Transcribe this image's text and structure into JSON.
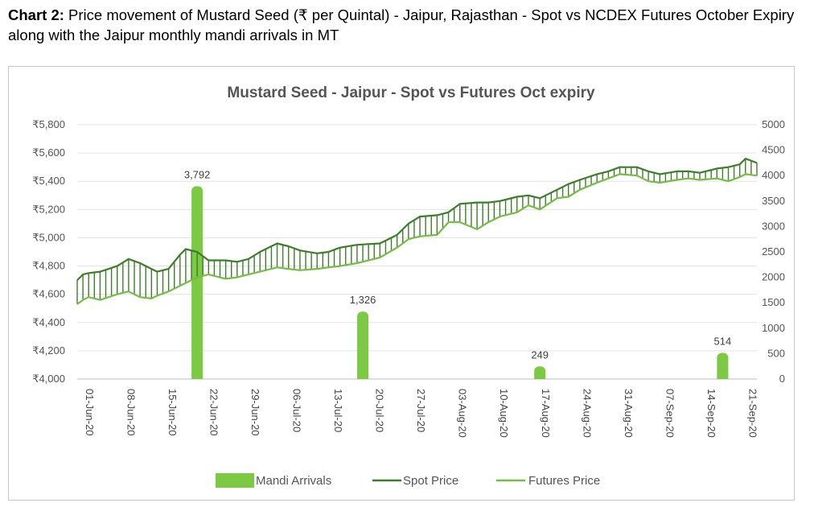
{
  "caption": {
    "bold": "Chart 2:",
    "text": " Price movement of Mustard Seed (₹ per Quintal) - Jaipur, Rajasthan - Spot vs NCDEX Futures October Expiry along with the Jaipur monthly mandi arrivals in MT"
  },
  "chart_data": {
    "type": "line",
    "title": "Mustard Seed - Jaipur - Spot vs Futures Oct expiry",
    "xlabel": "",
    "ylabel": "",
    "y_left": {
      "min": 4000,
      "max": 5800,
      "ticks": [
        4000,
        4200,
        4400,
        4600,
        4800,
        5000,
        5200,
        5400,
        5600,
        5800
      ],
      "tick_labels": [
        "₹4,000",
        "₹4,200",
        "₹4,400",
        "₹4,600",
        "₹4,800",
        "₹5,000",
        "₹5,200",
        "₹5,400",
        "₹5,600",
        "₹5,800"
      ]
    },
    "y_right": {
      "min": 0,
      "max": 5000,
      "ticks": [
        0,
        500,
        1000,
        1500,
        2000,
        2500,
        3000,
        3500,
        4000,
        4500,
        5000
      ],
      "tick_labels": [
        "0",
        "500",
        "1000",
        "1500",
        "2000",
        "2500",
        "3000",
        "3500",
        "4000",
        "4500",
        "5000"
      ]
    },
    "x_range": [
      "2020-06-01",
      "2020-09-28"
    ],
    "x_ticks": [
      "01-Jun-20",
      "08-Jun-20",
      "15-Jun-20",
      "22-Jun-20",
      "29-Jun-20",
      "06-Jul-20",
      "13-Jul-20",
      "20-Jul-20",
      "27-Jul-20",
      "03-Aug-20",
      "10-Aug-20",
      "17-Aug-20",
      "24-Aug-20",
      "31-Aug-20",
      "07-Sep-20",
      "14-Sep-20",
      "21-Sep-20"
    ],
    "grid": "horizontal",
    "legend_position": "bottom",
    "series": [
      {
        "name": "Spot Price",
        "color": "#3e7d2c",
        "points": [
          [
            "2020-06-01",
            4700
          ],
          [
            "2020-06-02",
            4740
          ],
          [
            "2020-06-03",
            4750
          ],
          [
            "2020-06-05",
            4760
          ],
          [
            "2020-06-08",
            4800
          ],
          [
            "2020-06-10",
            4850
          ],
          [
            "2020-06-12",
            4820
          ],
          [
            "2020-06-14",
            4780
          ],
          [
            "2020-06-15",
            4760
          ],
          [
            "2020-06-17",
            4780
          ],
          [
            "2020-06-19",
            4880
          ],
          [
            "2020-06-20",
            4920
          ],
          [
            "2020-06-22",
            4900
          ],
          [
            "2020-06-24",
            4840
          ],
          [
            "2020-06-27",
            4840
          ],
          [
            "2020-06-29",
            4830
          ],
          [
            "2020-07-01",
            4850
          ],
          [
            "2020-07-03",
            4900
          ],
          [
            "2020-07-06",
            4960
          ],
          [
            "2020-07-08",
            4940
          ],
          [
            "2020-07-10",
            4910
          ],
          [
            "2020-07-13",
            4890
          ],
          [
            "2020-07-15",
            4900
          ],
          [
            "2020-07-17",
            4930
          ],
          [
            "2020-07-20",
            4950
          ],
          [
            "2020-07-22",
            4955
          ],
          [
            "2020-07-24",
            4960
          ],
          [
            "2020-07-27",
            5020
          ],
          [
            "2020-07-29",
            5100
          ],
          [
            "2020-07-31",
            5150
          ],
          [
            "2020-08-03",
            5160
          ],
          [
            "2020-08-05",
            5180
          ],
          [
            "2020-08-07",
            5240
          ],
          [
            "2020-08-10",
            5250
          ],
          [
            "2020-08-12",
            5250
          ],
          [
            "2020-08-14",
            5260
          ],
          [
            "2020-08-17",
            5290
          ],
          [
            "2020-08-19",
            5300
          ],
          [
            "2020-08-21",
            5280
          ],
          [
            "2020-08-24",
            5340
          ],
          [
            "2020-08-26",
            5380
          ],
          [
            "2020-08-28",
            5410
          ],
          [
            "2020-08-31",
            5450
          ],
          [
            "2020-09-02",
            5470
          ],
          [
            "2020-09-04",
            5500
          ],
          [
            "2020-09-07",
            5500
          ],
          [
            "2020-09-09",
            5470
          ],
          [
            "2020-09-11",
            5450
          ],
          [
            "2020-09-14",
            5470
          ],
          [
            "2020-09-16",
            5470
          ],
          [
            "2020-09-18",
            5460
          ],
          [
            "2020-09-21",
            5490
          ],
          [
            "2020-09-23",
            5500
          ],
          [
            "2020-09-25",
            5520
          ],
          [
            "2020-09-26",
            5560
          ],
          [
            "2020-09-28",
            5530
          ]
        ]
      },
      {
        "name": "Futures Price",
        "color": "#77bc45",
        "points": [
          [
            "2020-06-01",
            4530
          ],
          [
            "2020-06-02",
            4560
          ],
          [
            "2020-06-03",
            4580
          ],
          [
            "2020-06-05",
            4560
          ],
          [
            "2020-06-08",
            4600
          ],
          [
            "2020-06-10",
            4620
          ],
          [
            "2020-06-12",
            4580
          ],
          [
            "2020-06-14",
            4570
          ],
          [
            "2020-06-15",
            4590
          ],
          [
            "2020-06-17",
            4620
          ],
          [
            "2020-06-19",
            4660
          ],
          [
            "2020-06-20",
            4680
          ],
          [
            "2020-06-22",
            4720
          ],
          [
            "2020-06-24",
            4740
          ],
          [
            "2020-06-27",
            4710
          ],
          [
            "2020-06-29",
            4720
          ],
          [
            "2020-07-01",
            4740
          ],
          [
            "2020-07-03",
            4760
          ],
          [
            "2020-07-06",
            4790
          ],
          [
            "2020-07-08",
            4780
          ],
          [
            "2020-07-10",
            4770
          ],
          [
            "2020-07-13",
            4780
          ],
          [
            "2020-07-15",
            4790
          ],
          [
            "2020-07-17",
            4800
          ],
          [
            "2020-07-20",
            4820
          ],
          [
            "2020-07-22",
            4840
          ],
          [
            "2020-07-24",
            4860
          ],
          [
            "2020-07-27",
            4930
          ],
          [
            "2020-07-29",
            4990
          ],
          [
            "2020-07-31",
            5010
          ],
          [
            "2020-08-03",
            5020
          ],
          [
            "2020-08-05",
            5110
          ],
          [
            "2020-08-07",
            5110
          ],
          [
            "2020-08-10",
            5060
          ],
          [
            "2020-08-12",
            5110
          ],
          [
            "2020-08-14",
            5150
          ],
          [
            "2020-08-17",
            5180
          ],
          [
            "2020-08-19",
            5230
          ],
          [
            "2020-08-21",
            5200
          ],
          [
            "2020-08-24",
            5280
          ],
          [
            "2020-08-26",
            5290
          ],
          [
            "2020-08-28",
            5340
          ],
          [
            "2020-08-31",
            5390
          ],
          [
            "2020-09-02",
            5420
          ],
          [
            "2020-09-04",
            5450
          ],
          [
            "2020-09-07",
            5440
          ],
          [
            "2020-09-09",
            5400
          ],
          [
            "2020-09-11",
            5390
          ],
          [
            "2020-09-14",
            5410
          ],
          [
            "2020-09-16",
            5420
          ],
          [
            "2020-09-18",
            5410
          ],
          [
            "2020-09-21",
            5420
          ],
          [
            "2020-09-23",
            5400
          ],
          [
            "2020-09-25",
            5430
          ],
          [
            "2020-09-26",
            5450
          ],
          [
            "2020-09-28",
            5440
          ]
        ]
      }
    ],
    "bars": {
      "name": "Mandi Arrivals",
      "color": "#7cc943",
      "axis": "right",
      "points": [
        {
          "x": "2020-06-22",
          "value": 3792,
          "label": "3,792"
        },
        {
          "x": "2020-07-21",
          "value": 1326,
          "label": "1,326"
        },
        {
          "x": "2020-08-21",
          "value": 249,
          "label": "249"
        },
        {
          "x": "2020-09-22",
          "value": 514,
          "label": "514"
        }
      ]
    }
  }
}
